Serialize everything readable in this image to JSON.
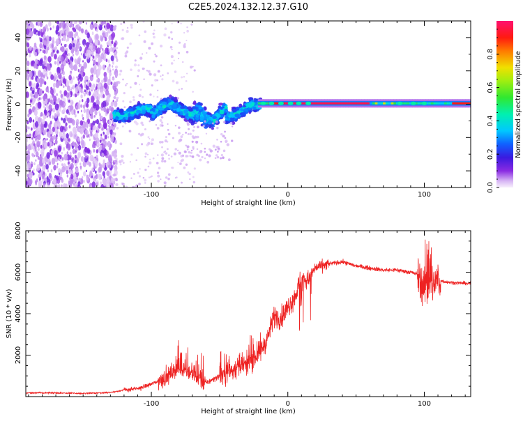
{
  "title": "C2E5.2024.132.12.37.G10",
  "chart_data": [
    {
      "type": "heatmap",
      "name": "spectrogram",
      "xlabel": "Height of straight line (km)",
      "ylabel": "Frequency (Hz)",
      "xlim": [
        -192,
        134
      ],
      "ylim": [
        -50,
        50
      ],
      "xticks": [
        -100,
        0,
        100
      ],
      "yticks": [
        -40,
        -20,
        0,
        20,
        40
      ],
      "colorbar": {
        "label": "Normalized spectral amplitude",
        "range": [
          0,
          1
        ],
        "ticks": [
          0.0,
          0.2,
          0.4,
          0.6,
          0.8
        ]
      },
      "description_bands": [
        {
          "x_range": [
            -192,
            -128
          ],
          "note": "broadband noise",
          "amplitude": 0.1
        },
        {
          "x_range": [
            -128,
            -22
          ],
          "center_hz_range": [
            -7,
            7
          ],
          "amplitude_peak": 0.45
        },
        {
          "x_range": [
            -22,
            134
          ],
          "center_hz": 0.5,
          "amplitude": 0.95
        }
      ]
    },
    {
      "type": "line",
      "name": "snr",
      "xlabel": "Height of straight line (km)",
      "ylabel": "SNR (10 * v/v)",
      "xlim": [
        -192,
        134
      ],
      "ylim": [
        0,
        8000
      ],
      "xticks": [
        -100,
        0,
        100
      ],
      "yticks": [
        2000,
        4000,
        6000,
        8000
      ],
      "color": "#ee2222",
      "series": [
        {
          "name": "SNR",
          "x": [
            -192,
            -170,
            -150,
            -130,
            -120,
            -110,
            -100,
            -90,
            -80,
            -70,
            -60,
            -50,
            -40,
            -30,
            -20,
            -15,
            -10,
            -5,
            0,
            5,
            10,
            15,
            20,
            30,
            40,
            50,
            60,
            70,
            80,
            90,
            95,
            100,
            105,
            110,
            120,
            134
          ],
          "values": [
            180,
            180,
            150,
            200,
            320,
            380,
            600,
            900,
            1400,
            1100,
            650,
            1000,
            1300,
            1500,
            2200,
            2800,
            3900,
            3800,
            4300,
            4800,
            5700,
            5600,
            6200,
            6400,
            6500,
            6300,
            6200,
            6100,
            6100,
            6000,
            5900,
            5200,
            5400,
            5600,
            5500,
            5450
          ]
        }
      ]
    }
  ]
}
